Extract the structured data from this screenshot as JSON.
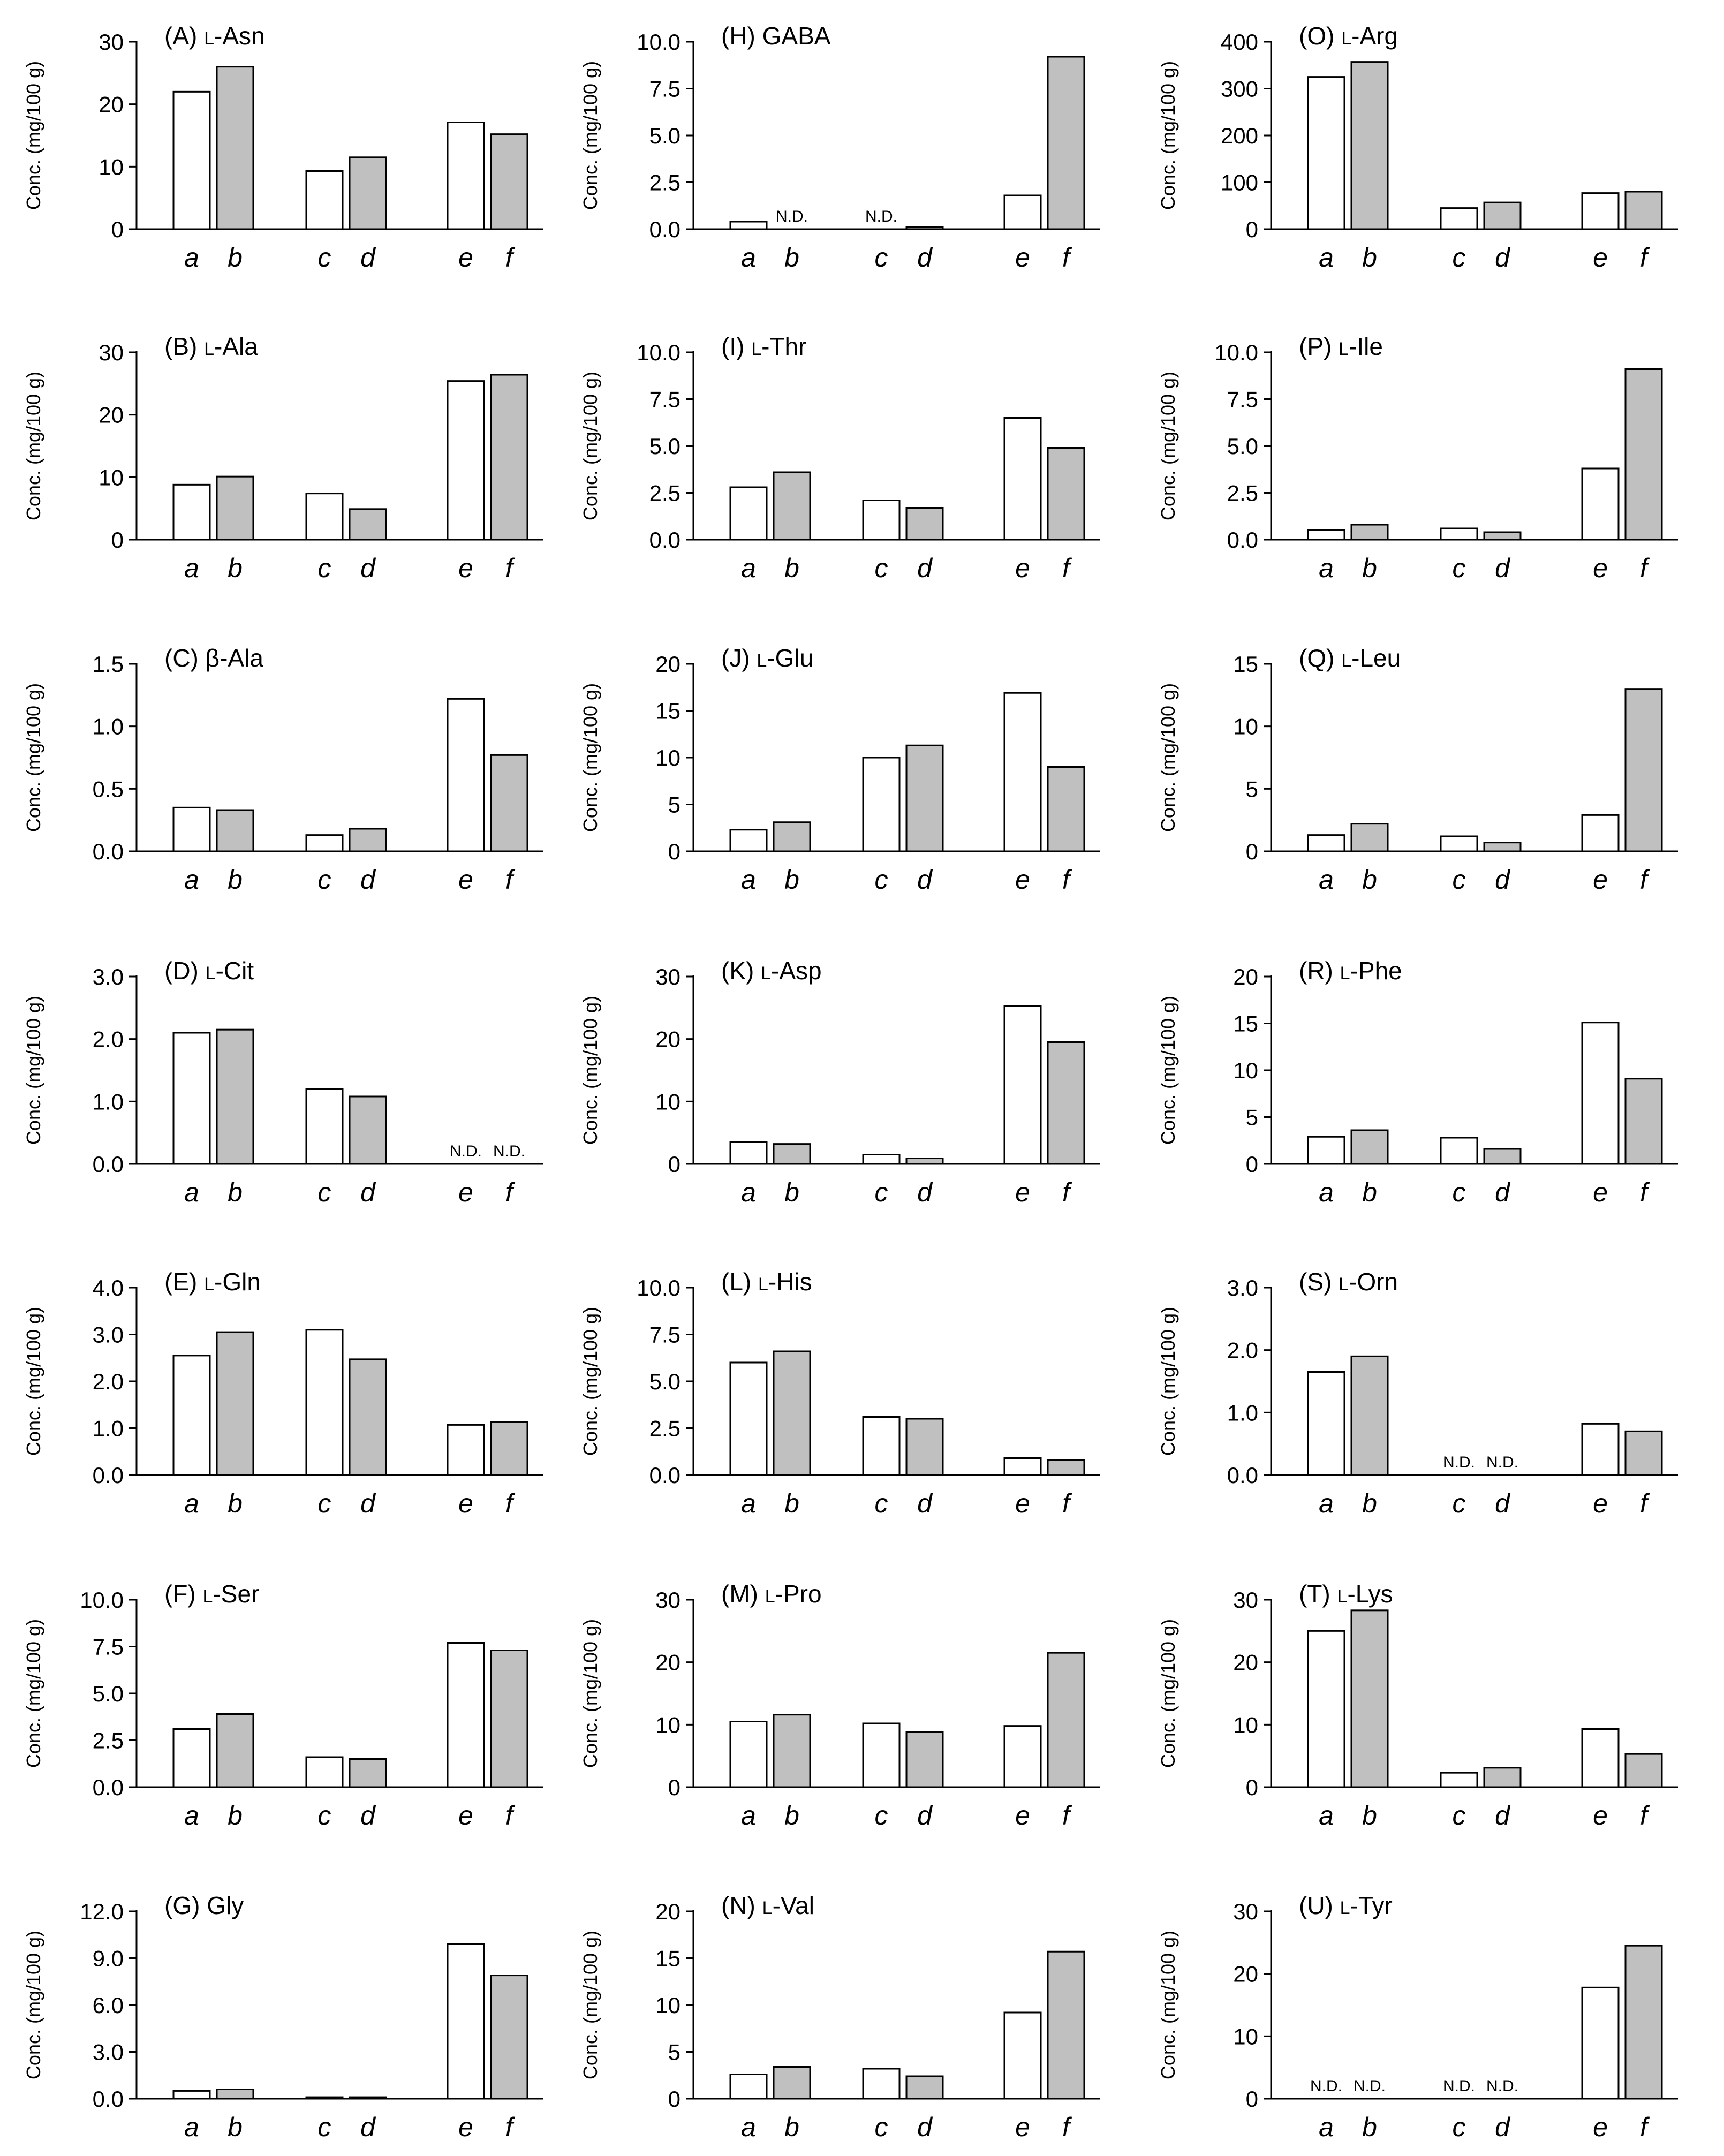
{
  "figure": {
    "y_axis_label": "Conc. (mg/100 g)",
    "nd_label": "N.D.",
    "categories": [
      "a",
      "b",
      "c",
      "d",
      "e",
      "f"
    ],
    "colors": {
      "odd_bar_fill": "#ffffff",
      "even_bar_fill": "#c0c0c0",
      "stroke": "#000000"
    }
  },
  "chart_data": [
    {
      "type": "bar",
      "title": "(A) L-Asn",
      "ylabel": "Conc. (mg/100 g)",
      "categories": [
        "a",
        "b",
        "c",
        "d",
        "e",
        "f"
      ],
      "values": [
        22.0,
        26.0,
        9.3,
        11.5,
        17.1,
        15.2
      ],
      "ylim": [
        0,
        30
      ],
      "yticks": [
        "0",
        "10",
        "20",
        "30"
      ]
    },
    {
      "type": "bar",
      "title": "(B) L-Ala",
      "ylabel": "Conc. (mg/100 g)",
      "categories": [
        "a",
        "b",
        "c",
        "d",
        "e",
        "f"
      ],
      "values": [
        8.8,
        10.1,
        7.4,
        4.9,
        25.4,
        26.4
      ],
      "ylim": [
        0,
        30
      ],
      "yticks": [
        "0",
        "10",
        "20",
        "30"
      ]
    },
    {
      "type": "bar",
      "title": "(C) β-Ala",
      "ylabel": "Conc. (mg/100 g)",
      "categories": [
        "a",
        "b",
        "c",
        "d",
        "e",
        "f"
      ],
      "values": [
        0.35,
        0.33,
        0.13,
        0.18,
        1.22,
        0.77
      ],
      "ylim": [
        0,
        1.5
      ],
      "yticks": [
        "0.0",
        "0.5",
        "1.0",
        "1.5"
      ]
    },
    {
      "type": "bar",
      "title": "(D) L-Cit",
      "ylabel": "Conc. (mg/100 g)",
      "categories": [
        "a",
        "b",
        "c",
        "d",
        "e",
        "f"
      ],
      "values": [
        2.1,
        2.15,
        1.2,
        1.08,
        null,
        null
      ],
      "ylim": [
        0,
        3
      ],
      "yticks": [
        "0.0",
        "1.0",
        "2.0",
        "3.0"
      ]
    },
    {
      "type": "bar",
      "title": "(E) L-Gln",
      "ylabel": "Conc. (mg/100 g)",
      "categories": [
        "a",
        "b",
        "c",
        "d",
        "e",
        "f"
      ],
      "values": [
        2.55,
        3.05,
        3.1,
        2.47,
        1.07,
        1.13
      ],
      "ylim": [
        0,
        4
      ],
      "yticks": [
        "0.0",
        "1.0",
        "2.0",
        "3.0",
        "4.0"
      ]
    },
    {
      "type": "bar",
      "title": "(F) L-Ser",
      "ylabel": "Conc. (mg/100 g)",
      "categories": [
        "a",
        "b",
        "c",
        "d",
        "e",
        "f"
      ],
      "values": [
        3.1,
        3.9,
        1.6,
        1.5,
        7.7,
        7.3
      ],
      "ylim": [
        0,
        10
      ],
      "yticks": [
        "0.0",
        "2.5",
        "5.0",
        "7.5",
        "10.0"
      ]
    },
    {
      "type": "bar",
      "title": "(G) Gly",
      "ylabel": "Conc. (mg/100 g)",
      "categories": [
        "a",
        "b",
        "c",
        "d",
        "e",
        "f"
      ],
      "values": [
        0.5,
        0.6,
        0.1,
        0.1,
        9.9,
        7.9
      ],
      "ylim": [
        0,
        12
      ],
      "yticks": [
        "0.0",
        "3.0",
        "6.0",
        "9.0",
        "12.0"
      ]
    },
    {
      "type": "bar",
      "title": "(H) GABA",
      "ylabel": "Conc. (mg/100 g)",
      "categories": [
        "a",
        "b",
        "c",
        "d",
        "e",
        "f"
      ],
      "values": [
        0.4,
        null,
        null,
        0.1,
        1.8,
        9.2
      ],
      "ylim": [
        0,
        10
      ],
      "yticks": [
        "0.0",
        "2.5",
        "5.0",
        "7.5",
        "10.0"
      ]
    },
    {
      "type": "bar",
      "title": "(I) L-Thr",
      "ylabel": "Conc. (mg/100 g)",
      "categories": [
        "a",
        "b",
        "c",
        "d",
        "e",
        "f"
      ],
      "values": [
        2.8,
        3.6,
        2.1,
        1.7,
        6.5,
        4.9
      ],
      "ylim": [
        0,
        10
      ],
      "yticks": [
        "0.0",
        "2.5",
        "5.0",
        "7.5",
        "10.0"
      ]
    },
    {
      "type": "bar",
      "title": "(J) L-Glu",
      "ylabel": "Conc. (mg/100 g)",
      "categories": [
        "a",
        "b",
        "c",
        "d",
        "e",
        "f"
      ],
      "values": [
        2.3,
        3.1,
        10.0,
        11.3,
        16.9,
        9.0
      ],
      "ylim": [
        0,
        20
      ],
      "yticks": [
        "0",
        "5",
        "10",
        "15",
        "20"
      ]
    },
    {
      "type": "bar",
      "title": "(K) L-Asp",
      "ylabel": "Conc. (mg/100 g)",
      "categories": [
        "a",
        "b",
        "c",
        "d",
        "e",
        "f"
      ],
      "values": [
        3.5,
        3.2,
        1.5,
        0.9,
        25.3,
        19.5
      ],
      "ylim": [
        0,
        30
      ],
      "yticks": [
        "0",
        "10",
        "20",
        "30"
      ]
    },
    {
      "type": "bar",
      "title": "(L) L-His",
      "ylabel": "Conc. (mg/100 g)",
      "categories": [
        "a",
        "b",
        "c",
        "d",
        "e",
        "f"
      ],
      "values": [
        6.0,
        6.6,
        3.1,
        3.0,
        0.9,
        0.8
      ],
      "ylim": [
        0,
        10
      ],
      "yticks": [
        "0.0",
        "2.5",
        "5.0",
        "7.5",
        "10.0"
      ]
    },
    {
      "type": "bar",
      "title": "(M) L-Pro",
      "ylabel": "Conc. (mg/100 g)",
      "categories": [
        "a",
        "b",
        "c",
        "d",
        "e",
        "f"
      ],
      "values": [
        10.5,
        11.6,
        10.2,
        8.8,
        9.8,
        21.5
      ],
      "ylim": [
        0,
        30
      ],
      "yticks": [
        "0",
        "10",
        "20",
        "30"
      ]
    },
    {
      "type": "bar",
      "title": "(N) L-Val",
      "ylabel": "Conc. (mg/100 g)",
      "categories": [
        "a",
        "b",
        "c",
        "d",
        "e",
        "f"
      ],
      "values": [
        2.6,
        3.4,
        3.2,
        2.4,
        9.2,
        15.7
      ],
      "ylim": [
        0,
        20
      ],
      "yticks": [
        "0",
        "5",
        "10",
        "15",
        "20"
      ]
    },
    {
      "type": "bar",
      "title": "(O) L-Arg",
      "ylabel": "Conc. (mg/100 g)",
      "categories": [
        "a",
        "b",
        "c",
        "d",
        "e",
        "f"
      ],
      "values": [
        325,
        357,
        45,
        57,
        77,
        80
      ],
      "ylim": [
        0,
        400
      ],
      "yticks": [
        "0",
        "100",
        "200",
        "300",
        "400"
      ]
    },
    {
      "type": "bar",
      "title": "(P) L-Ile",
      "ylabel": "Conc. (mg/100 g)",
      "categories": [
        "a",
        "b",
        "c",
        "d",
        "e",
        "f"
      ],
      "values": [
        0.5,
        0.8,
        0.6,
        0.4,
        3.8,
        9.1
      ],
      "ylim": [
        0,
        10
      ],
      "yticks": [
        "0.0",
        "2.5",
        "5.0",
        "7.5",
        "10.0"
      ]
    },
    {
      "type": "bar",
      "title": "(Q) L-Leu",
      "ylabel": "Conc. (mg/100 g)",
      "categories": [
        "a",
        "b",
        "c",
        "d",
        "e",
        "f"
      ],
      "values": [
        1.3,
        2.2,
        1.2,
        0.7,
        2.9,
        13.0
      ],
      "ylim": [
        0,
        15
      ],
      "yticks": [
        "0",
        "5",
        "10",
        "15"
      ]
    },
    {
      "type": "bar",
      "title": "(R) L-Phe",
      "ylabel": "Conc. (mg/100 g)",
      "categories": [
        "a",
        "b",
        "c",
        "d",
        "e",
        "f"
      ],
      "values": [
        2.9,
        3.6,
        2.8,
        1.6,
        15.1,
        9.1
      ],
      "ylim": [
        0,
        20
      ],
      "yticks": [
        "0",
        "5",
        "10",
        "15",
        "20"
      ]
    },
    {
      "type": "bar",
      "title": "(S) L-Orn",
      "ylabel": "Conc. (mg/100 g)",
      "categories": [
        "a",
        "b",
        "c",
        "d",
        "e",
        "f"
      ],
      "values": [
        1.65,
        1.9,
        null,
        null,
        0.82,
        0.7
      ],
      "ylim": [
        0,
        3
      ],
      "yticks": [
        "0.0",
        "1.0",
        "2.0",
        "3.0"
      ]
    },
    {
      "type": "bar",
      "title": "(T) L-Lys",
      "ylabel": "Conc. (mg/100 g)",
      "categories": [
        "a",
        "b",
        "c",
        "d",
        "e",
        "f"
      ],
      "values": [
        25.0,
        28.3,
        2.3,
        3.1,
        9.3,
        5.3
      ],
      "ylim": [
        0,
        30
      ],
      "yticks": [
        "0",
        "10",
        "20",
        "30"
      ]
    },
    {
      "type": "bar",
      "title": "(U) L-Tyr",
      "ylabel": "Conc. (mg/100 g)",
      "categories": [
        "a",
        "b",
        "c",
        "d",
        "e",
        "f"
      ],
      "values": [
        null,
        null,
        null,
        null,
        17.8,
        24.5
      ],
      "ylim": [
        0,
        30
      ],
      "yticks": [
        "0",
        "10",
        "20",
        "30"
      ]
    }
  ]
}
